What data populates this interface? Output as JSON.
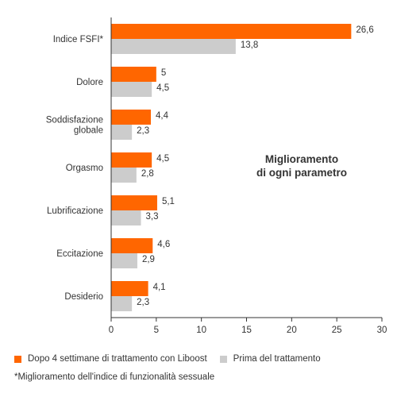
{
  "chart_data": {
    "type": "bar",
    "orientation": "horizontal",
    "categories": [
      "Indice FSFI*",
      "Dolore",
      "Soddisfazione globale",
      "Orgasmo",
      "Lubrificazione",
      "Eccitazione",
      "Desiderio"
    ],
    "category_lines": [
      [
        "Indice FSFI*"
      ],
      [
        "Dolore"
      ],
      [
        "Soddisfazione",
        "globale"
      ],
      [
        "Orgasmo"
      ],
      [
        "Lubrificazione"
      ],
      [
        "Eccitazione"
      ],
      [
        "Desiderio"
      ]
    ],
    "series": [
      {
        "name": "Dopo 4 settimane di trattamento con Liboost",
        "color": "#ff6600",
        "values": [
          26.6,
          5,
          4.4,
          4.5,
          5.1,
          4.6,
          4.1
        ],
        "labels": [
          "26,6",
          "5",
          "4,4",
          "4,5",
          "5,1",
          "4,6",
          "4,1"
        ]
      },
      {
        "name": "Prima del trattamento",
        "color": "#cccccc",
        "values": [
          13.8,
          4.5,
          2.3,
          2.8,
          3.3,
          2.9,
          2.3
        ],
        "labels": [
          "13,8",
          "4,5",
          "2,3",
          "2,8",
          "3,3",
          "2,9",
          "2,3"
        ]
      }
    ],
    "xlim": [
      0,
      30
    ],
    "xticks": [
      0,
      5,
      10,
      15,
      20,
      25,
      30
    ],
    "xtick_labels": [
      "0",
      "5",
      "10",
      "15",
      "20",
      "25",
      "30"
    ],
    "annotation": [
      "Miglioramento",
      "di ogni parametro"
    ],
    "footnote": "*Miglioramento dell'indice di funzionalità sessuale",
    "grid": false,
    "legend_position": "bottom"
  }
}
